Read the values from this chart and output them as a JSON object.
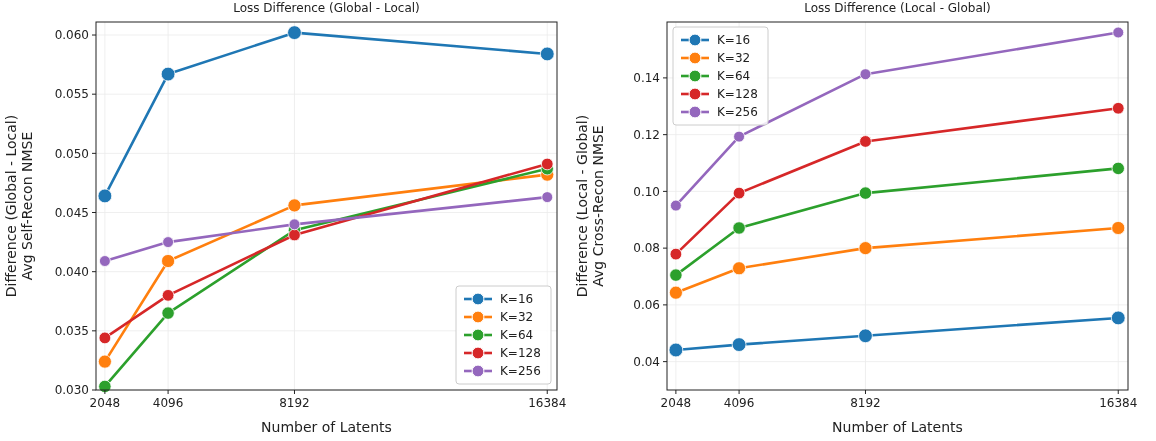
{
  "chart_data": [
    {
      "type": "line",
      "title": "Loss Difference (Global - Local)",
      "xlabel": "Number of Latents",
      "ylabel": "Difference (Global - Local)\nAvg Self-Recon NMSE",
      "x": [
        2048,
        4096,
        8192,
        16384
      ],
      "xlim": [
        1760,
        16700
      ],
      "xticks": [
        2048,
        4096,
        8192,
        16384
      ],
      "ylim": [
        0.03,
        0.0611
      ],
      "yticks": [
        {
          "value": 0.03,
          "label": "0.030"
        },
        {
          "value": 0.035,
          "label": "0.035"
        },
        {
          "value": 0.04,
          "label": "0.040"
        },
        {
          "value": 0.045,
          "label": "0.045"
        },
        {
          "value": 0.05,
          "label": "0.050"
        },
        {
          "value": 0.055,
          "label": "0.055"
        },
        {
          "value": 0.06,
          "label": "0.060"
        }
      ],
      "grid": true,
      "legend": "bottom right",
      "marker": "circle",
      "line_style": "solid",
      "series": [
        {
          "name": "K=16",
          "color": "#1f77b4",
          "values": [
            0.0464,
            0.0567,
            0.0602,
            0.0584
          ]
        },
        {
          "name": "K=32",
          "color": "#ff7f0e",
          "values": [
            0.0324,
            0.0409,
            0.0456,
            0.0482
          ]
        },
        {
          "name": "K=64",
          "color": "#2ca02c",
          "values": [
            0.0303,
            0.0365,
            0.0435,
            0.0487
          ]
        },
        {
          "name": "K=128",
          "color": "#d62728",
          "values": [
            0.0344,
            0.038,
            0.0431,
            0.0491
          ]
        },
        {
          "name": "K=256",
          "color": "#9467bd",
          "values": [
            0.0409,
            0.0425,
            0.044,
            0.0463
          ]
        }
      ]
    },
    {
      "type": "line",
      "title": "Loss Difference (Local - Global)",
      "xlabel": "Number of Latents",
      "ylabel": "Difference (Local - Global)\nAvg Cross-Recon NMSE",
      "x": [
        2048,
        4096,
        8192,
        16384
      ],
      "xlim": [
        1760,
        16700
      ],
      "xticks": [
        2048,
        4096,
        8192,
        16384
      ],
      "ylim": [
        0.03,
        0.1597
      ],
      "yticks": [
        {
          "value": 0.04,
          "label": "0.04"
        },
        {
          "value": 0.06,
          "label": "0.06"
        },
        {
          "value": 0.08,
          "label": "0.08"
        },
        {
          "value": 0.1,
          "label": "0.10"
        },
        {
          "value": 0.12,
          "label": "0.12"
        },
        {
          "value": 0.14,
          "label": "0.14"
        }
      ],
      "grid": true,
      "legend": "top left",
      "marker": "circle",
      "line_style": "solid",
      "series": [
        {
          "name": "K=16",
          "color": "#1f77b4",
          "values": [
            0.0441,
            0.046,
            0.0491,
            0.0554
          ]
        },
        {
          "name": "K=32",
          "color": "#ff7f0e",
          "values": [
            0.0643,
            0.0729,
            0.08,
            0.0871
          ]
        },
        {
          "name": "K=64",
          "color": "#2ca02c",
          "values": [
            0.0705,
            0.0871,
            0.0994,
            0.1081
          ]
        },
        {
          "name": "K=128",
          "color": "#d62728",
          "values": [
            0.0779,
            0.0994,
            0.1176,
            0.1293
          ]
        },
        {
          "name": "K=256",
          "color": "#9467bd",
          "values": [
            0.095,
            0.1193,
            0.1413,
            0.156
          ]
        }
      ]
    }
  ]
}
